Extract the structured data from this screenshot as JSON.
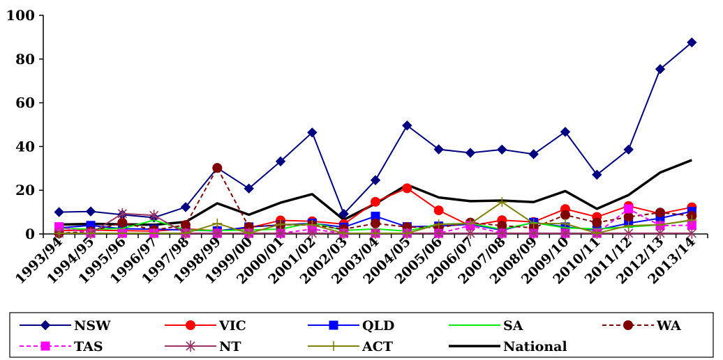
{
  "chart_data": {
    "type": "line",
    "categories": [
      "1993/94",
      "1994/95",
      "1995/96",
      "1996/97",
      "1997/98",
      "1998/99",
      "1999/00",
      "2000/01",
      "2001/02",
      "2002/03",
      "2003/04",
      "2004/05",
      "2005/06",
      "2006/07",
      "2007/08",
      "2008/09",
      "2009/10",
      "2010/11",
      "2011/12",
      "2012/13",
      "2013/14"
    ],
    "ylim": [
      0,
      100
    ],
    "yticks": [
      0,
      20,
      40,
      60,
      80,
      100
    ],
    "ytick_labels": [
      "0",
      "20",
      "40",
      "60",
      "80",
      "100"
    ],
    "grid": false,
    "legend_position": "bottom",
    "series": [
      {
        "name": "NSW",
        "color": "#000080",
        "marker": "diamond",
        "dash": "solid",
        "values": [
          10,
          10.3,
          8.8,
          7.5,
          12.3,
          30.2,
          20.8,
          33.2,
          46.4,
          9.2,
          24.6,
          49.6,
          38.7,
          37.1,
          38.6,
          36.5,
          46.7,
          27.1,
          38.6,
          75.4,
          87.6
        ]
      },
      {
        "name": "VIC",
        "color": "#ff0000",
        "marker": "circle",
        "dash": "solid",
        "values": [
          1.5,
          1.8,
          1.5,
          1.3,
          2.3,
          1.5,
          2.8,
          6.2,
          5.8,
          4.5,
          14.7,
          20.9,
          10.8,
          3.7,
          6.3,
          5.5,
          11.4,
          7.8,
          12.8,
          9.3,
          12.2
        ]
      },
      {
        "name": "QLD",
        "color": "#0000ff",
        "marker": "square",
        "dash": "solid",
        "values": [
          2.8,
          3.9,
          2.4,
          2.2,
          1.8,
          1.4,
          3.2,
          4.1,
          4.9,
          3.1,
          8.1,
          3.3,
          3.6,
          4.4,
          1.7,
          5.3,
          3.2,
          1.8,
          4.9,
          7.2,
          10.3
        ]
      },
      {
        "name": "SA",
        "color": "#00ee00",
        "marker": "none",
        "dash": "solid",
        "values": [
          2.5,
          2.2,
          2.5,
          6.3,
          1.8,
          1.6,
          1.8,
          2.2,
          5.2,
          1.6,
          2.3,
          1.3,
          4.5,
          4.8,
          2.1,
          5.2,
          2.8,
          2.3,
          3.2,
          4.2,
          6.2
        ]
      },
      {
        "name": "WA",
        "color": "#800000",
        "marker": "circle",
        "dash": "dashed",
        "values": [
          0.3,
          1.2,
          5.2,
          1.8,
          4.1,
          30.2,
          3.2,
          4.2,
          4.1,
          2.2,
          4.8,
          3.2,
          2.9,
          5.2,
          3.8,
          2.8,
          8.7,
          5.2,
          7.8,
          9.8,
          8.3
        ]
      },
      {
        "name": "TAS",
        "color": "#ff00ff",
        "marker": "square",
        "dash": "dashed",
        "values": [
          3.3,
          0.3,
          0.3,
          0.3,
          0.3,
          0.3,
          0.3,
          0.3,
          2.2,
          0.3,
          0.3,
          0.3,
          0.3,
          3.8,
          0.3,
          0.3,
          0.3,
          0.3,
          11.5,
          3.8,
          4.0
        ]
      },
      {
        "name": "NT",
        "color": "#993366",
        "marker": "star",
        "dash": "solid",
        "values": [
          0.3,
          0.3,
          9.3,
          8.5,
          0.3,
          0.3,
          0.3,
          0.3,
          0.3,
          0.3,
          0.3,
          0.3,
          0.3,
          0.3,
          0.3,
          0.3,
          0.3,
          0.3,
          0.3,
          0.3,
          0.3
        ]
      },
      {
        "name": "ACT",
        "color": "#808000",
        "marker": "plus",
        "dash": "solid",
        "values": [
          0.3,
          0.3,
          0.3,
          0.3,
          0.3,
          4.8,
          0.3,
          4.4,
          4.2,
          0.3,
          0.3,
          0.3,
          4.4,
          4.7,
          14.6,
          4.8,
          4.7,
          0.3,
          3.8,
          4.2,
          6.4
        ]
      },
      {
        "name": "National",
        "color": "#000000",
        "marker": "none",
        "dash": "solid",
        "bold": true,
        "values": [
          4.3,
          4.6,
          4.4,
          4.2,
          5.5,
          14.0,
          8.8,
          14.3,
          18.2,
          6.5,
          13.9,
          22.5,
          16.7,
          15.0,
          15.3,
          14.6,
          19.6,
          11.5,
          17.8,
          28.1,
          33.8
        ]
      }
    ]
  }
}
